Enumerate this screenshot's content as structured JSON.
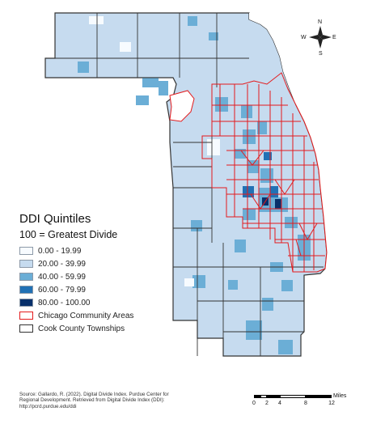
{
  "legend": {
    "title": "DDI Quintiles",
    "subtitle": "100 = Greatest Divide",
    "classes": [
      {
        "label": "0.00 - 19.99",
        "color": "#f7fbff"
      },
      {
        "label": "20.00 - 39.99",
        "color": "#c6dbef"
      },
      {
        "label": "40.00 - 59.99",
        "color": "#6baed6"
      },
      {
        "label": "60.00 - 79.99",
        "color": "#2171b5"
      },
      {
        "label": "80.00 - 100.00",
        "color": "#08306b"
      }
    ],
    "outlines": [
      {
        "label": "Chicago Community Areas",
        "color": "#e41a1c"
      },
      {
        "label": "Cook County Townships",
        "color": "#333333"
      }
    ]
  },
  "source": {
    "line1": "Source: Gallardo, R. (2022). Digital Divide Index. Purdue Center for",
    "line2": "Regional Development. Retrieved from Digital Divide Index (DDI):",
    "line3": "http://pcrd.purdue.edu/ddi"
  },
  "scalebar": {
    "ticks": [
      "0",
      "2",
      "4",
      "8",
      "12"
    ],
    "unit": "Miles"
  },
  "compass": {
    "n": "N",
    "s": "S",
    "e": "E",
    "w": "W"
  },
  "colors": {
    "land_base": "#c6dbef",
    "water": "#ffffff",
    "township_line": "#333333",
    "community_line": "#e41a1c"
  }
}
